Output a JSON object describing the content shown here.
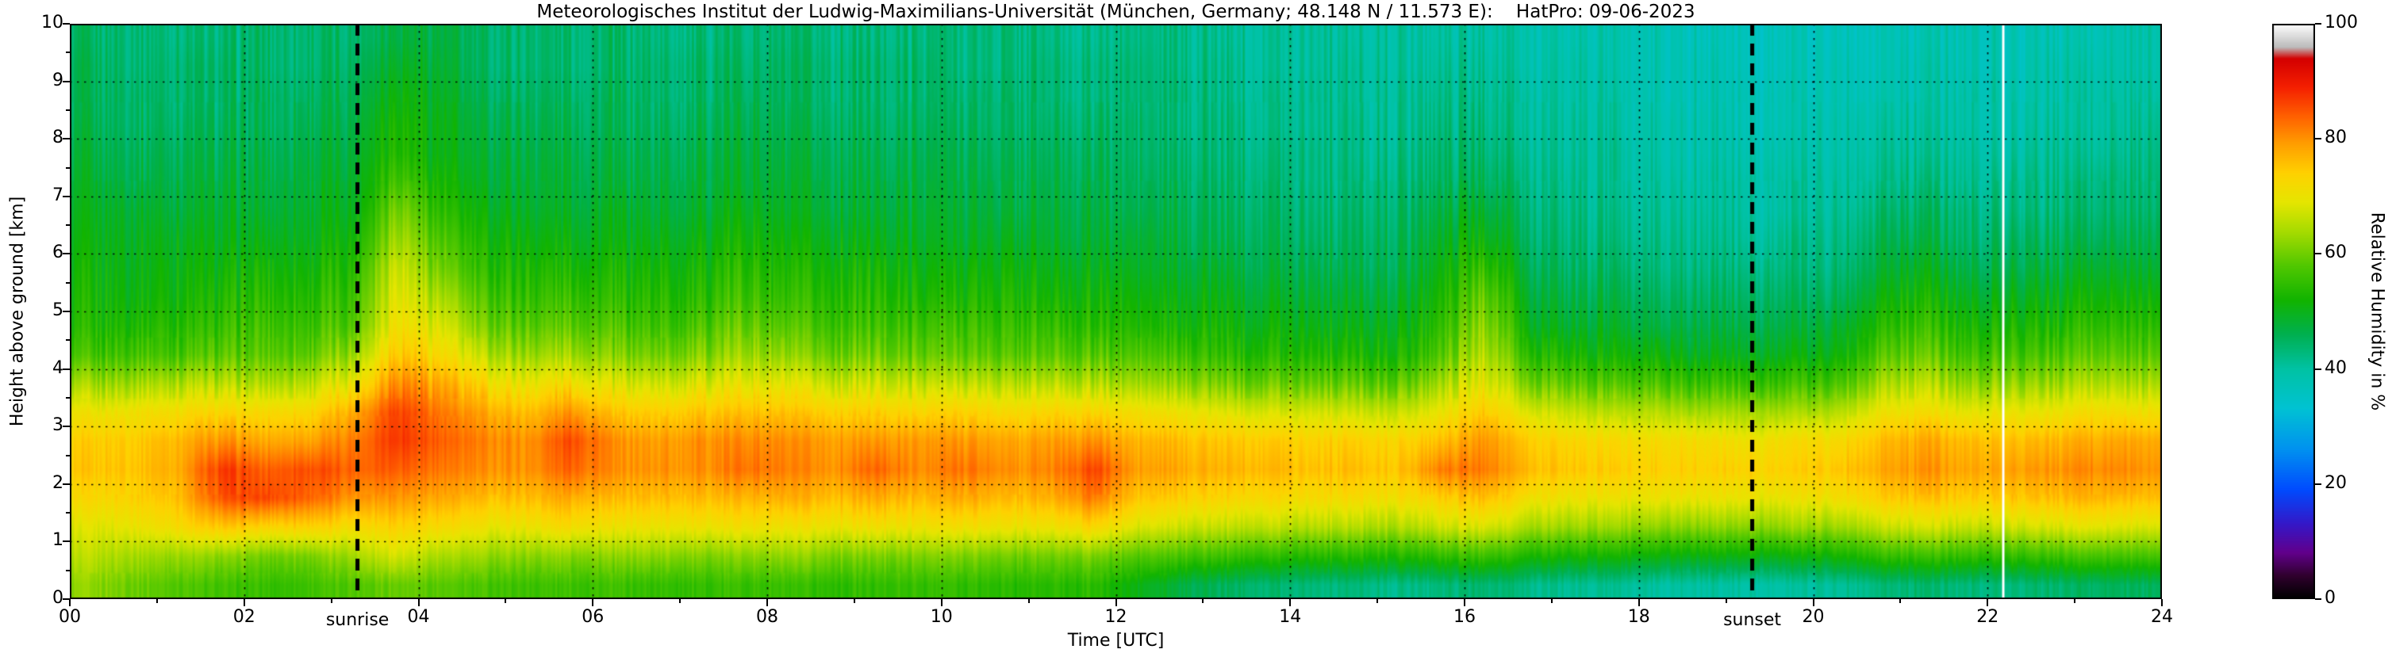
{
  "chart_data": {
    "type": "heatmap",
    "title": "Meteorologisches Institut der Ludwig-Maximilians-Universität (München, Germany; 48.148 N / 11.573 E):    HatPro: 09-06-2023",
    "station": "München, Germany",
    "coordinates": "48.148 N / 11.573 E",
    "instrument": "HatPro",
    "date": "09-06-2023",
    "xlabel": "Time [UTC]",
    "ylabel": "Height above ground [km]",
    "colorbar_label": "Relative Humidity in %",
    "xlim": [
      0,
      24
    ],
    "ylim": [
      0,
      10
    ],
    "zlim": [
      0,
      100
    ],
    "grid": "dotted black lines every 2 h and every 1 km",
    "legend_position": "right colorbar",
    "x_ticks": [
      "00",
      "02",
      "04",
      "06",
      "08",
      "10",
      "12",
      "14",
      "16",
      "18",
      "20",
      "22",
      "24"
    ],
    "x_tick_hours": [
      0,
      2,
      4,
      6,
      8,
      10,
      12,
      14,
      16,
      18,
      20,
      22,
      24
    ],
    "y_ticks": [
      "0",
      "1",
      "2",
      "3",
      "4",
      "5",
      "6",
      "7",
      "8",
      "9",
      "10"
    ],
    "y_tick_km": [
      0,
      1,
      2,
      3,
      4,
      5,
      6,
      7,
      8,
      9,
      10
    ],
    "colorbar_ticks": [
      "0",
      "20",
      "40",
      "60",
      "80",
      "100"
    ],
    "colorbar_tick_values": [
      0,
      20,
      40,
      60,
      80,
      100
    ],
    "annotations": {
      "sunrise": {
        "label": "sunrise",
        "hour_utc": 3.3
      },
      "sunset": {
        "label": "sunset",
        "hour_utc": 19.3
      },
      "data_gap_hour_utc": 22.18
    },
    "colormap_stops": [
      [
        0,
        "#000000"
      ],
      [
        4,
        "#30002e"
      ],
      [
        8,
        "#62008c"
      ],
      [
        13,
        "#3518c8"
      ],
      [
        19,
        "#004cff"
      ],
      [
        26,
        "#0092f0"
      ],
      [
        33,
        "#00c2d4"
      ],
      [
        40,
        "#00c2a4"
      ],
      [
        46,
        "#00b050"
      ],
      [
        52,
        "#12b400"
      ],
      [
        58,
        "#52c800"
      ],
      [
        64,
        "#a8dc00"
      ],
      [
        69,
        "#e6e600"
      ],
      [
        74,
        "#ffd200"
      ],
      [
        79,
        "#ffa000"
      ],
      [
        84,
        "#ff6000"
      ],
      [
        89,
        "#f52000"
      ],
      [
        94,
        "#d40000"
      ],
      [
        96,
        "#bcbcbc"
      ],
      [
        100,
        "#ffffff"
      ]
    ],
    "field": {
      "description": "Relative humidity in % vs time (UTC) and height above ground (km); coarse 30-min x 0.5-km estimate read from the plot colors",
      "t0": 0.25,
      "h0": 0.25,
      "time_centers_hours_step": 0.5,
      "height_centers_km_step": 0.5,
      "order": "humidity_percent_columns[time ascending 00:15..23:45][height ascending 0.25km..9.75km]",
      "humidity_percent_columns": [
        [
          62,
          65,
          68,
          72,
          75,
          74,
          70,
          63,
          56,
          53,
          52,
          51,
          50,
          49,
          48,
          47,
          46,
          45,
          45,
          44
        ],
        [
          60,
          64,
          70,
          74,
          76,
          75,
          71,
          64,
          57,
          54,
          52,
          51,
          50,
          49,
          47,
          46,
          45,
          45,
          44,
          44
        ],
        [
          58,
          63,
          72,
          76,
          78,
          77,
          72,
          65,
          57,
          54,
          52,
          51,
          50,
          48,
          47,
          46,
          45,
          44,
          44,
          43
        ],
        [
          56,
          62,
          75,
          85,
          87,
          80,
          73,
          65,
          58,
          55,
          53,
          51,
          49,
          48,
          47,
          46,
          45,
          44,
          44,
          43
        ],
        [
          55,
          60,
          73,
          86,
          84,
          78,
          72,
          64,
          58,
          56,
          54,
          52,
          50,
          48,
          47,
          46,
          45,
          45,
          44,
          44
        ],
        [
          56,
          61,
          74,
          84,
          86,
          79,
          73,
          66,
          59,
          56,
          54,
          52,
          50,
          49,
          48,
          47,
          46,
          45,
          44,
          44
        ],
        [
          58,
          64,
          72,
          80,
          84,
          82,
          78,
          70,
          63,
          58,
          56,
          54,
          52,
          50,
          49,
          48,
          47,
          46,
          45,
          44
        ],
        [
          60,
          68,
          74,
          80,
          85,
          88,
          87,
          82,
          76,
          72,
          70,
          68,
          65,
          62,
          58,
          55,
          54,
          52,
          50,
          48
        ],
        [
          58,
          64,
          72,
          78,
          82,
          84,
          82,
          78,
          72,
          68,
          64,
          60,
          57,
          54,
          52,
          50,
          50,
          49,
          48,
          47
        ],
        [
          57,
          63,
          70,
          76,
          80,
          81,
          78,
          72,
          65,
          60,
          57,
          54,
          52,
          50,
          48,
          47,
          46,
          45,
          44,
          44
        ],
        [
          56,
          62,
          70,
          76,
          80,
          80,
          76,
          70,
          63,
          58,
          55,
          53,
          51,
          49,
          48,
          47,
          46,
          45,
          44,
          44
        ],
        [
          56,
          62,
          72,
          78,
          84,
          86,
          80,
          72,
          64,
          59,
          56,
          53,
          51,
          49,
          48,
          47,
          46,
          45,
          44,
          44
        ],
        [
          56,
          62,
          70,
          76,
          80,
          80,
          75,
          68,
          61,
          57,
          54,
          52,
          50,
          49,
          47,
          46,
          45,
          45,
          44,
          44
        ],
        [
          55,
          62,
          70,
          76,
          80,
          79,
          74,
          67,
          60,
          56,
          54,
          52,
          50,
          48,
          47,
          46,
          45,
          44,
          44,
          43
        ],
        [
          55,
          61,
          70,
          76,
          80,
          80,
          75,
          68,
          61,
          57,
          54,
          52,
          50,
          48,
          47,
          46,
          45,
          44,
          44,
          43
        ],
        [
          56,
          62,
          71,
          77,
          83,
          81,
          76,
          70,
          64,
          60,
          57,
          55,
          53,
          51,
          49,
          48,
          47,
          46,
          45,
          44
        ],
        [
          55,
          62,
          70,
          77,
          81,
          80,
          75,
          68,
          61,
          57,
          54,
          52,
          50,
          48,
          47,
          46,
          45,
          44,
          44,
          43
        ],
        [
          55,
          61,
          70,
          76,
          80,
          79,
          74,
          67,
          60,
          56,
          54,
          52,
          50,
          48,
          47,
          46,
          45,
          44,
          44,
          43
        ],
        [
          55,
          61,
          71,
          78,
          84,
          80,
          74,
          67,
          60,
          56,
          54,
          52,
          50,
          48,
          47,
          46,
          45,
          44,
          44,
          43
        ],
        [
          55,
          61,
          70,
          76,
          80,
          79,
          73,
          66,
          59,
          56,
          53,
          51,
          49,
          48,
          47,
          46,
          45,
          44,
          44,
          43
        ],
        [
          55,
          61,
          71,
          78,
          83,
          80,
          74,
          66,
          59,
          56,
          53,
          51,
          49,
          48,
          47,
          46,
          45,
          44,
          43,
          43
        ],
        [
          54,
          60,
          70,
          76,
          80,
          78,
          72,
          65,
          58,
          55,
          53,
          51,
          49,
          47,
          46,
          45,
          44,
          44,
          43,
          43
        ],
        [
          54,
          60,
          70,
          77,
          81,
          79,
          73,
          65,
          58,
          55,
          52,
          50,
          48,
          47,
          46,
          45,
          44,
          43,
          43,
          42
        ],
        [
          54,
          61,
          73,
          82,
          86,
          80,
          73,
          65,
          58,
          54,
          52,
          50,
          48,
          47,
          46,
          45,
          44,
          43,
          43,
          42
        ],
        [
          50,
          58,
          68,
          75,
          79,
          77,
          71,
          63,
          57,
          53,
          51,
          49,
          48,
          46,
          45,
          44,
          44,
          43,
          43,
          42
        ],
        [
          47,
          57,
          67,
          74,
          78,
          76,
          70,
          62,
          56,
          52,
          50,
          48,
          47,
          46,
          45,
          44,
          43,
          43,
          42,
          42
        ],
        [
          45,
          56,
          66,
          73,
          77,
          75,
          69,
          61,
          55,
          52,
          50,
          48,
          46,
          45,
          44,
          43,
          43,
          42,
          42,
          41
        ],
        [
          44,
          55,
          66,
          73,
          77,
          75,
          68,
          60,
          54,
          51,
          49,
          47,
          46,
          45,
          44,
          43,
          42,
          42,
          41,
          41
        ],
        [
          43,
          54,
          65,
          72,
          76,
          74,
          68,
          60,
          54,
          51,
          49,
          47,
          45,
          44,
          43,
          43,
          42,
          42,
          41,
          41
        ],
        [
          43,
          54,
          65,
          72,
          76,
          74,
          67,
          59,
          53,
          50,
          48,
          46,
          45,
          44,
          43,
          42,
          42,
          41,
          41,
          40
        ],
        [
          42,
          53,
          64,
          71,
          75,
          73,
          66,
          58,
          52,
          50,
          48,
          46,
          45,
          44,
          43,
          42,
          41,
          41,
          40,
          40
        ],
        [
          43,
          55,
          67,
          74,
          82,
          76,
          70,
          64,
          58,
          55,
          53,
          51,
          49,
          47,
          45,
          44,
          43,
          42,
          41,
          40
        ],
        [
          44,
          56,
          68,
          76,
          82,
          80,
          75,
          70,
          66,
          63,
          60,
          56,
          52,
          49,
          46,
          44,
          43,
          42,
          41,
          40
        ],
        [
          42,
          53,
          64,
          71,
          76,
          74,
          68,
          60,
          54,
          50,
          48,
          46,
          44,
          43,
          42,
          41,
          40,
          40,
          39,
          39
        ],
        [
          41,
          52,
          63,
          70,
          75,
          73,
          66,
          58,
          52,
          48,
          46,
          44,
          43,
          42,
          41,
          40,
          40,
          39,
          39,
          38
        ],
        [
          41,
          52,
          63,
          70,
          74,
          72,
          65,
          57,
          51,
          48,
          46,
          44,
          42,
          41,
          40,
          40,
          39,
          39,
          38,
          38
        ],
        [
          40,
          51,
          62,
          70,
          74,
          72,
          65,
          57,
          51,
          47,
          45,
          43,
          42,
          41,
          40,
          39,
          39,
          38,
          38,
          38
        ],
        [
          40,
          51,
          62,
          70,
          74,
          72,
          64,
          56,
          50,
          47,
          45,
          43,
          42,
          41,
          40,
          39,
          39,
          38,
          38,
          37
        ],
        [
          40,
          51,
          62,
          70,
          74,
          71,
          64,
          56,
          50,
          47,
          45,
          43,
          41,
          40,
          40,
          39,
          38,
          38,
          37,
          37
        ],
        [
          40,
          51,
          63,
          70,
          74,
          72,
          64,
          56,
          50,
          47,
          45,
          43,
          42,
          40,
          40,
          39,
          38,
          38,
          37,
          37
        ],
        [
          41,
          52,
          63,
          71,
          75,
          72,
          65,
          57,
          51,
          48,
          45,
          43,
          42,
          41,
          40,
          39,
          39,
          38,
          38,
          37
        ],
        [
          43,
          55,
          66,
          74,
          78,
          76,
          70,
          64,
          58,
          54,
          51,
          48,
          46,
          44,
          42,
          41,
          40,
          39,
          38,
          38
        ],
        [
          44,
          56,
          68,
          76,
          80,
          78,
          72,
          66,
          60,
          56,
          53,
          50,
          47,
          45,
          43,
          41,
          40,
          39,
          39,
          38
        ],
        [
          43,
          55,
          66,
          74,
          78,
          76,
          69,
          62,
          56,
          52,
          49,
          46,
          44,
          43,
          41,
          40,
          39,
          39,
          38,
          38
        ],
        [
          43,
          55,
          67,
          75,
          79,
          76,
          70,
          63,
          57,
          53,
          50,
          47,
          45,
          43,
          42,
          40,
          39,
          39,
          38,
          38
        ],
        [
          44,
          56,
          68,
          76,
          80,
          77,
          70,
          63,
          57,
          53,
          50,
          47,
          45,
          43,
          42,
          41,
          40,
          39,
          39,
          38
        ],
        [
          45,
          57,
          69,
          77,
          81,
          78,
          72,
          65,
          59,
          55,
          52,
          49,
          46,
          44,
          43,
          41,
          40,
          40,
          39,
          38
        ],
        [
          45,
          57,
          68,
          76,
          80,
          78,
          71,
          64,
          58,
          54,
          51,
          48,
          46,
          44,
          43,
          42,
          41,
          40,
          39,
          39
        ]
      ]
    }
  }
}
